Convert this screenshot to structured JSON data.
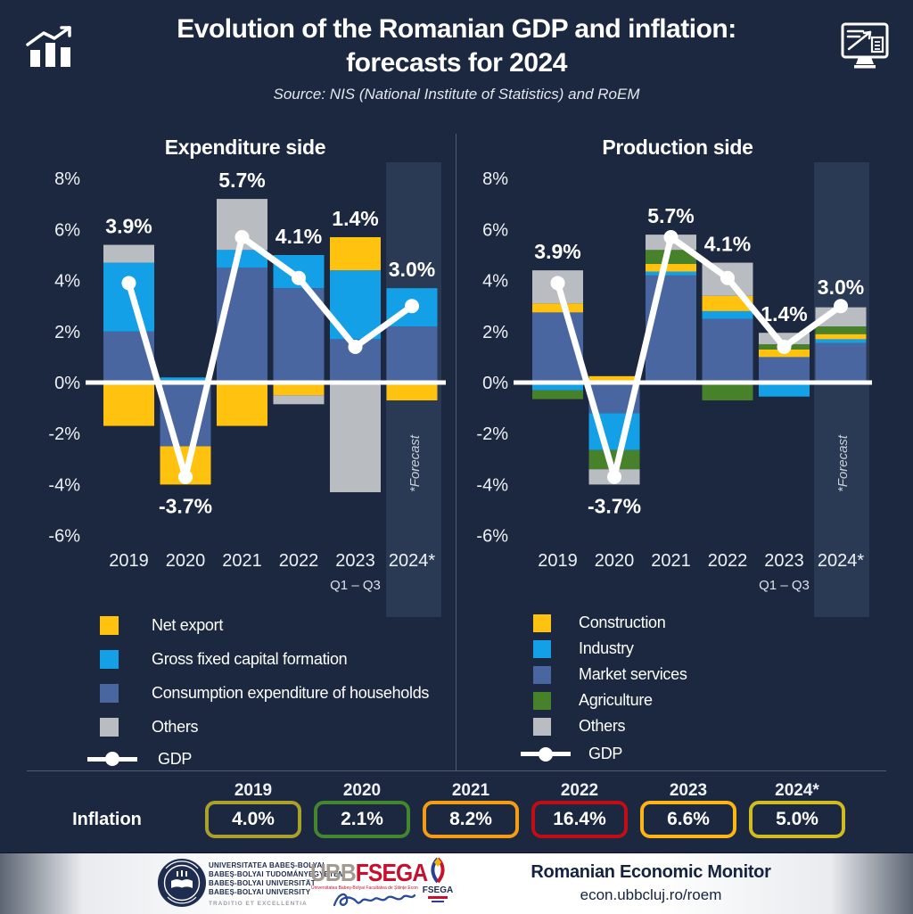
{
  "header": {
    "title_line1": "Evolution of the Romanian GDP and inflation:",
    "title_line2": "forecasts for 2024",
    "subtitle": "Source: NIS (National Institute of Statistics) and RoEM"
  },
  "colors": {
    "background": "#1b2840",
    "steelblue": "#4a66a0",
    "lightblue": "#14a0e6",
    "yellow": "#ffc20e",
    "gray": "#b9bcc0",
    "green": "#47822a",
    "band": "#2b3a54",
    "white": "#ffffff"
  },
  "chart_data": [
    {
      "type": "bar",
      "title": "Expenditure side",
      "stacked": true,
      "categories": [
        "2019",
        "2020",
        "2021",
        "2022",
        "2023",
        "2024*"
      ],
      "x_sub_label": {
        "index": 4,
        "text": "Q1 – Q3"
      },
      "forecast_label": "*Forecast",
      "ylim": [
        -6.5,
        8.5
      ],
      "yticks": [
        {
          "value": 8,
          "label": "8%"
        },
        {
          "value": 6,
          "label": "6%"
        },
        {
          "value": 4,
          "label": "4%"
        },
        {
          "value": 2,
          "label": "2%"
        },
        {
          "value": 0,
          "label": "0%"
        },
        {
          "value": -2,
          "label": "-2%"
        },
        {
          "value": -4,
          "label": "-4%"
        },
        {
          "value": -6,
          "label": "-6%"
        }
      ],
      "series": [
        {
          "name": "Consumption expenditure of households",
          "color_key": "steelblue",
          "values": [
            2.0,
            -2.5,
            4.5,
            3.7,
            1.7,
            2.2
          ]
        },
        {
          "name": "Gross fixed capital formation",
          "color_key": "lightblue",
          "values": [
            2.7,
            0.2,
            0.7,
            1.3,
            2.7,
            1.5
          ]
        },
        {
          "name": "Net export",
          "color_key": "yellow",
          "values": [
            -1.7,
            -1.5,
            -1.7,
            -0.5,
            1.3,
            -0.7
          ]
        },
        {
          "name": "Others",
          "color_key": "gray",
          "values": [
            0.7,
            0,
            2.0,
            -0.35,
            -4.3,
            0
          ]
        }
      ],
      "gdp": {
        "name": "GDP",
        "values": [
          3.9,
          -3.7,
          5.7,
          4.1,
          1.4,
          3.0
        ],
        "labels": [
          "3.9%",
          "-3.7%",
          "5.7%",
          "4.1%",
          "1.4%",
          "3.0%"
        ]
      }
    },
    {
      "type": "bar",
      "title": "Production side",
      "stacked": true,
      "categories": [
        "2019",
        "2020",
        "2021",
        "2022",
        "2023",
        "2024*"
      ],
      "x_sub_label": {
        "index": 4,
        "text": "Q1 – Q3"
      },
      "forecast_label": "*Forecast",
      "ylim": [
        -6.5,
        8.5
      ],
      "yticks": [
        {
          "value": 8,
          "label": "8%"
        },
        {
          "value": 6,
          "label": "6%"
        },
        {
          "value": 4,
          "label": "4%"
        },
        {
          "value": 2,
          "label": "2%"
        },
        {
          "value": 0,
          "label": "0%"
        },
        {
          "value": -2,
          "label": "-2%"
        },
        {
          "value": -4,
          "label": "-4%"
        },
        {
          "value": -6,
          "label": "-6%"
        }
      ],
      "series": [
        {
          "name": "Market services",
          "color_key": "steelblue",
          "values": [
            2.75,
            -1.2,
            4.2,
            2.5,
            1.0,
            1.55
          ]
        },
        {
          "name": "Industry",
          "color_key": "lightblue",
          "values": [
            -0.3,
            -1.45,
            0.15,
            0.3,
            -0.55,
            0.15
          ]
        },
        {
          "name": "Construction",
          "color_key": "yellow",
          "values": [
            0.35,
            0.25,
            0.3,
            0.6,
            0.3,
            0.2
          ]
        },
        {
          "name": "Agriculture",
          "color_key": "green",
          "values": [
            -0.35,
            -0.75,
            0.55,
            -0.7,
            0.2,
            0.3
          ]
        },
        {
          "name": "Others",
          "color_key": "gray",
          "values": [
            1.3,
            -0.6,
            0.6,
            1.3,
            0.45,
            0.75
          ]
        }
      ],
      "gdp": {
        "name": "GDP",
        "values": [
          3.9,
          -3.7,
          5.7,
          4.1,
          1.4,
          3.0
        ],
        "labels": [
          "3.9%",
          "-3.7%",
          "5.7%",
          "4.1%",
          "1.4%",
          "3.0%"
        ]
      }
    }
  ],
  "legends": {
    "left": {
      "items": [
        {
          "label": "Net export",
          "color_key": "yellow"
        },
        {
          "label": "Gross fixed capital formation",
          "color_key": "lightblue"
        },
        {
          "label": "Consumption expenditure of households",
          "color_key": "steelblue"
        },
        {
          "label": "Others",
          "color_key": "gray"
        }
      ],
      "gdp_label": "GDP"
    },
    "right": {
      "items": [
        {
          "label": "Construction",
          "color_key": "yellow"
        },
        {
          "label": "Industry",
          "color_key": "lightblue"
        },
        {
          "label": "Market services",
          "color_key": "steelblue"
        },
        {
          "label": "Agriculture",
          "color_key": "green"
        },
        {
          "label": "Others",
          "color_key": "gray"
        }
      ],
      "gdp_label": "GDP"
    }
  },
  "inflation": {
    "label": "Inflation",
    "items": [
      {
        "year": "2019",
        "value": "4.0%",
        "border": "#a9a12c"
      },
      {
        "year": "2020",
        "value": "2.1%",
        "border": "#44862e"
      },
      {
        "year": "2021",
        "value": "8.2%",
        "border": "#f49d13"
      },
      {
        "year": "2022",
        "value": "16.4%",
        "border": "#c20d14"
      },
      {
        "year": "2023",
        "value": "6.6%",
        "border": "#fcb514"
      },
      {
        "year": "2024*",
        "value": "5.0%",
        "border": "#d0bb20"
      }
    ]
  },
  "footer": {
    "university_lines": [
      "UNIVERSITATEA BABEȘ-BOLYAI",
      "BABEȘ-BOLYAI TUDOMÁNYEGYETEM",
      "BABEȘ-BOLYAI UNIVERSITÄT",
      "BABEȘ-BOLYAI UNIVERSITY"
    ],
    "university_motto": "TRADITIO ET EXCELLENTIA",
    "ubb": "UBB",
    "fsega": "FSEGA",
    "fsega_sub": "Universitatea Babeș-Bolyai Facultatea de Științe Economice și Gestiunea Afacerilor",
    "monitor_title": "Romanian Economic Monitor",
    "monitor_url": "econ.ubbcluj.ro/roem"
  }
}
